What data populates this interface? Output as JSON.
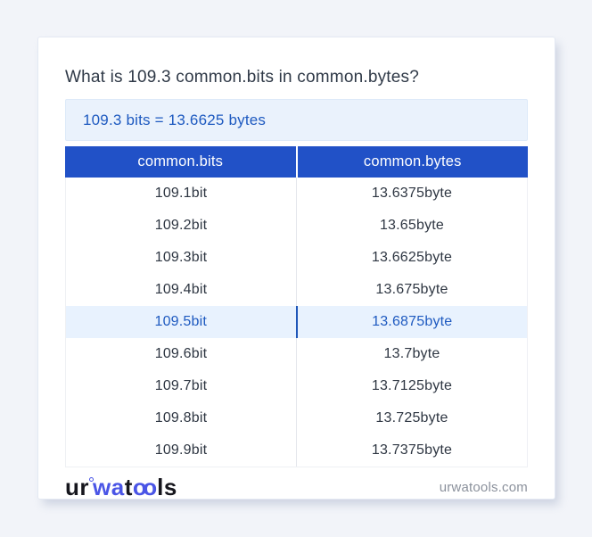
{
  "page": {
    "title": "What is 109.3 common.bits in common.bytes?",
    "result": "109.3 bits = 13.6625 bytes",
    "site_domain": "urwatools.com"
  },
  "logo": {
    "ur": "ur",
    "wa": "wa",
    "t": "t",
    "oo": "oo",
    "ls": "ls"
  },
  "table": {
    "headers": [
      "common.bits",
      "common.bytes"
    ],
    "rows": [
      {
        "bits": "109.1bit",
        "bytes": "13.6375byte",
        "highlighted": false
      },
      {
        "bits": "109.2bit",
        "bytes": "13.65byte",
        "highlighted": false
      },
      {
        "bits": "109.3bit",
        "bytes": "13.6625byte",
        "highlighted": false
      },
      {
        "bits": "109.4bit",
        "bytes": "13.675byte",
        "highlighted": false
      },
      {
        "bits": "109.5bit",
        "bytes": "13.6875byte",
        "highlighted": true
      },
      {
        "bits": "109.6bit",
        "bytes": "13.7byte",
        "highlighted": false
      },
      {
        "bits": "109.7bit",
        "bytes": "13.7125byte",
        "highlighted": false
      },
      {
        "bits": "109.8bit",
        "bytes": "13.725byte",
        "highlighted": false
      },
      {
        "bits": "109.9bit",
        "bytes": "13.7375byte",
        "highlighted": false
      }
    ]
  },
  "colors": {
    "page_background": "#f2f4f9",
    "card_background": "#ffffff",
    "header_blue": "#2151c7",
    "accent_blue_text": "#1e5ac0",
    "result_box_background": "#eaf2fc",
    "highlight_row_background": "#e8f2fe",
    "logo_blue": "#4a55e6",
    "body_text": "#2e3642",
    "domain_text": "#8b919c"
  }
}
